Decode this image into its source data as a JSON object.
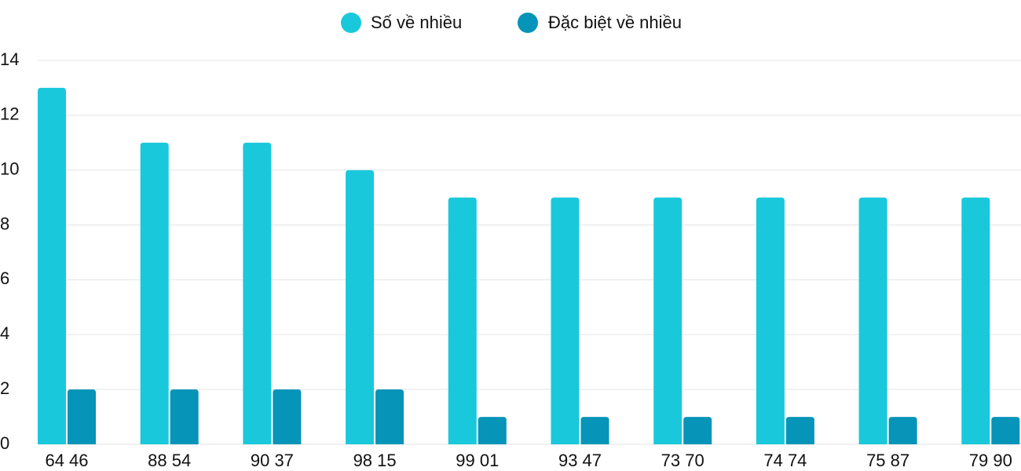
{
  "chart_data": {
    "type": "bar",
    "categories": [
      "64 46",
      "88 54",
      "90 37",
      "98 15",
      "99 01",
      "93 47",
      "73 70",
      "74 74",
      "75 87",
      "79 90"
    ],
    "series": [
      {
        "name": "Số về nhiều",
        "color": "#1ac8db",
        "values": [
          13,
          11,
          11,
          10,
          9,
          9,
          9,
          9,
          9,
          9
        ]
      },
      {
        "name": "Đặc biệt về nhiều",
        "color": "#0694b8",
        "values": [
          2,
          2,
          2,
          2,
          1,
          1,
          1,
          1,
          1,
          1
        ]
      }
    ],
    "ylim": [
      0,
      14
    ],
    "yticks": [
      0,
      2,
      4,
      6,
      8,
      10,
      12,
      14
    ],
    "grid": true
  }
}
